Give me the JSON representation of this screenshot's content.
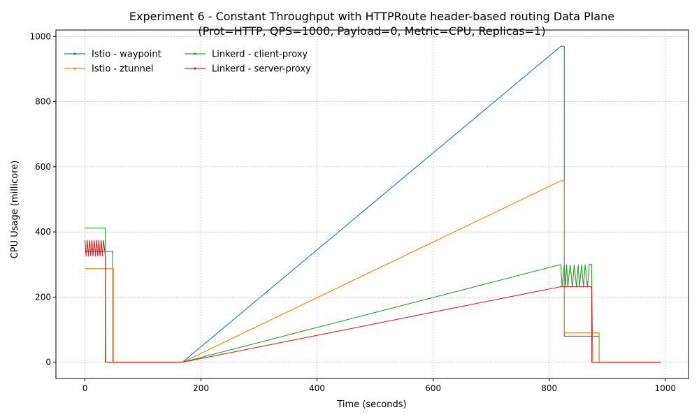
{
  "chart_data": {
    "type": "line",
    "title": "Experiment 6 - Constant Throughput with HTTPRoute header-based routing Data Plane",
    "subtitle": "(Prot=HTTP, QPS=1000, Payload=0, Metric=CPU, Replicas=1)",
    "xlabel": "Time (seconds)",
    "ylabel": "CPU Usage (millicore)",
    "xlim": [
      -50,
      1040
    ],
    "ylim": [
      -50,
      1020
    ],
    "xticks": [
      0,
      200,
      400,
      600,
      800,
      1000
    ],
    "yticks": [
      0,
      200,
      400,
      600,
      800,
      1000
    ],
    "grid": true,
    "legend": "upper-left, 2 columns, no frame",
    "series": [
      {
        "name": "Istio - waypoint",
        "color": "#1f77b4",
        "points": [
          [
            0,
            340
          ],
          [
            48,
            340
          ],
          [
            48,
            0
          ],
          [
            168,
            0
          ],
          [
            820,
            970
          ],
          [
            826,
            970
          ],
          [
            826,
            80
          ],
          [
            886,
            80
          ],
          [
            886,
            0
          ],
          [
            992,
            0
          ]
        ]
      },
      {
        "name": "Istio - ztunnel",
        "color": "#ff7f0e",
        "points": [
          [
            0,
            287
          ],
          [
            49,
            287
          ],
          [
            49,
            0
          ],
          [
            168,
            0
          ],
          [
            820,
            557
          ],
          [
            826,
            557
          ],
          [
            826,
            90
          ],
          [
            886,
            90
          ],
          [
            886,
            0
          ],
          [
            992,
            0
          ]
        ]
      },
      {
        "name": "Linkerd - client-proxy",
        "color": "#2ca02c",
        "points": [
          [
            0,
            412
          ],
          [
            35,
            412
          ],
          [
            35,
            0
          ],
          [
            168,
            0
          ],
          [
            820,
            300
          ],
          [
            822,
            230
          ],
          [
            826,
            300
          ],
          [
            828,
            230
          ],
          [
            830,
            300
          ],
          [
            832,
            230
          ],
          [
            836,
            300
          ],
          [
            840,
            230
          ],
          [
            843,
            300
          ],
          [
            847,
            230
          ],
          [
            850,
            300
          ],
          [
            852,
            230
          ],
          [
            856,
            300
          ],
          [
            859,
            230
          ],
          [
            862,
            300
          ],
          [
            866,
            230
          ],
          [
            869,
            300
          ],
          [
            873,
            300
          ],
          [
            875,
            0
          ],
          [
            992,
            0
          ]
        ]
      },
      {
        "name": "Linkerd - server-proxy",
        "color": "#d62728",
        "points": [
          [
            0,
            375
          ],
          [
            2,
            325
          ],
          [
            4,
            375
          ],
          [
            6,
            325
          ],
          [
            8,
            375
          ],
          [
            10,
            325
          ],
          [
            12,
            375
          ],
          [
            14,
            325
          ],
          [
            16,
            375
          ],
          [
            18,
            325
          ],
          [
            20,
            375
          ],
          [
            22,
            325
          ],
          [
            24,
            375
          ],
          [
            26,
            325
          ],
          [
            28,
            375
          ],
          [
            30,
            325
          ],
          [
            32,
            375
          ],
          [
            35,
            325
          ],
          [
            36,
            0
          ],
          [
            168,
            0
          ],
          [
            820,
            232
          ],
          [
            873,
            232
          ],
          [
            873,
            0
          ],
          [
            992,
            0
          ]
        ]
      }
    ]
  }
}
